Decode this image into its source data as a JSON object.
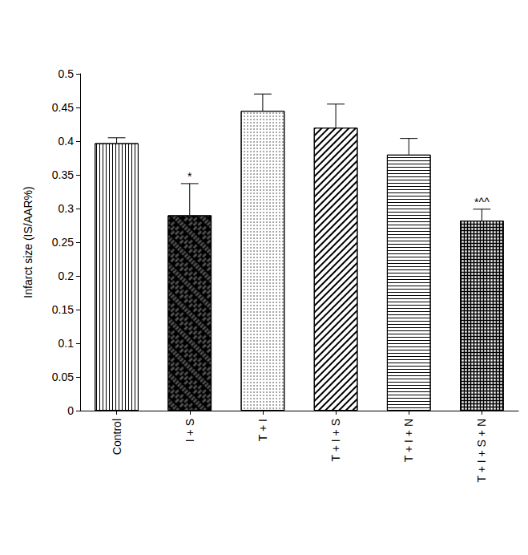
{
  "chart_data": {
    "type": "bar",
    "categories": [
      "Control",
      "I + S",
      "T + I",
      "T + I + S",
      "T + I + N",
      "T + I + S + N"
    ],
    "values": [
      0.397,
      0.29,
      0.445,
      0.42,
      0.38,
      0.282
    ],
    "errors": [
      0.008,
      0.047,
      0.025,
      0.035,
      0.024,
      0.017
    ],
    "annotations": [
      {
        "category": "I + S",
        "text": "*"
      },
      {
        "category": "T + I + S + N",
        "text": "*^^"
      }
    ],
    "y_label": "Infarct size (IS/AAR%)",
    "color": "#000000",
    "ylim": [
      0,
      0.5
    ],
    "yticks": [
      0,
      0.05,
      0.1,
      0.15,
      0.2,
      0.25,
      0.3,
      0.35,
      0.4,
      0.45,
      0.5
    ],
    "grid": false
  }
}
